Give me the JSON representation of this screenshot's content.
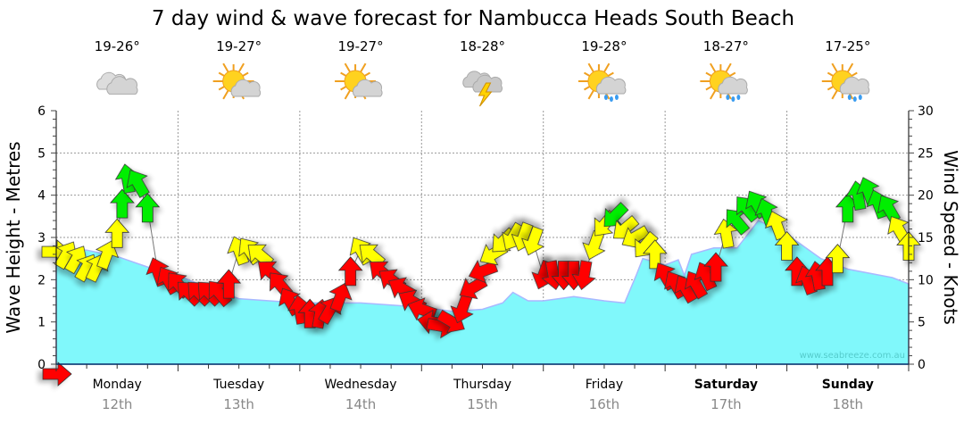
{
  "chart_data": {
    "type": "area+wind-arrows",
    "title": "7 day wind & wave forecast for Nambucca Heads South Beach",
    "ylabel_left": "Wave Height - Metres",
    "ylabel_right": "Wind Speed - Knots",
    "ylim_left": [
      0,
      6
    ],
    "ylim_right": [
      0,
      30
    ],
    "yticks_left": [
      "0",
      "1",
      "2",
      "3",
      "4",
      "5",
      "6"
    ],
    "yticks_right": [
      "0",
      "5",
      "10",
      "15",
      "20",
      "25",
      "30"
    ],
    "xlim_hours": [
      0,
      168
    ],
    "grid": true,
    "watermark": "www.seabreeze.com.au",
    "days": [
      {
        "name": "Monday",
        "date": "12th",
        "bold": false,
        "temp": "19-26°",
        "icon": "cloudy-icon"
      },
      {
        "name": "Tuesday",
        "date": "13th",
        "bold": false,
        "temp": "19-27°",
        "icon": "partly-cloudy-icon"
      },
      {
        "name": "Wednesday",
        "date": "14th",
        "bold": false,
        "temp": "19-27°",
        "icon": "partly-cloudy-icon"
      },
      {
        "name": "Thursday",
        "date": "15th",
        "bold": false,
        "temp": "18-28°",
        "icon": "thunderstorm-icon"
      },
      {
        "name": "Friday",
        "date": "16th",
        "bold": false,
        "temp": "19-28°",
        "icon": "sun-showers-icon"
      },
      {
        "name": "Saturday",
        "date": "17th",
        "bold": true,
        "temp": "18-27°",
        "icon": "sun-showers-icon"
      },
      {
        "name": "Sunday",
        "date": "18th",
        "bold": true,
        "temp": "17-25°",
        "icon": "sun-showers-icon"
      }
    ],
    "wave_height_m": [
      [
        0,
        2.75
      ],
      [
        6,
        2.7
      ],
      [
        12,
        2.55
      ],
      [
        18,
        2.3
      ],
      [
        24,
        2.1
      ],
      [
        30,
        1.8
      ],
      [
        36,
        1.55
      ],
      [
        42,
        1.5
      ],
      [
        48,
        1.45
      ],
      [
        60,
        1.45
      ],
      [
        66,
        1.4
      ],
      [
        72,
        1.35
      ],
      [
        78,
        1.25
      ],
      [
        84,
        1.3
      ],
      [
        88,
        1.45
      ],
      [
        90,
        1.7
      ],
      [
        93,
        1.5
      ],
      [
        96,
        1.5
      ],
      [
        102,
        1.6
      ],
      [
        108,
        1.5
      ],
      [
        112,
        1.45
      ],
      [
        114.3,
        2.1
      ],
      [
        115.6,
        2.5
      ],
      [
        120,
        2.35
      ],
      [
        122.6,
        2.47
      ],
      [
        123.8,
        2.1
      ],
      [
        125.2,
        2.6
      ],
      [
        129.6,
        2.75
      ],
      [
        134.2,
        2.75
      ],
      [
        138.4,
        3.4
      ],
      [
        143.7,
        3.1
      ],
      [
        150.7,
        2.5
      ],
      [
        156,
        2.25
      ],
      [
        164.8,
        2.05
      ],
      [
        168,
        1.9
      ]
    ],
    "wind_colors": {
      "light": "#ff0000",
      "moderate": "#ffff00",
      "strong": "#00ee00"
    },
    "wind": [
      [
        0,
        13.3,
        90,
        "moderate"
      ],
      [
        2,
        13,
        30,
        "moderate"
      ],
      [
        4,
        12.5,
        30,
        "moderate"
      ],
      [
        6,
        11.5,
        30,
        "moderate"
      ],
      [
        8,
        11.5,
        25,
        "moderate"
      ],
      [
        10,
        13,
        20,
        "moderate"
      ],
      [
        12,
        15.5,
        0,
        "moderate"
      ],
      [
        13,
        19,
        0,
        "strong"
      ],
      [
        14,
        22,
        -10,
        "strong"
      ],
      [
        16,
        21.5,
        -30,
        "strong"
      ],
      [
        18,
        18.5,
        0,
        "strong"
      ],
      [
        20,
        11,
        -20,
        "light"
      ],
      [
        22,
        10,
        -30,
        "light"
      ],
      [
        24,
        9.5,
        -40,
        "light"
      ],
      [
        26,
        8.5,
        -45,
        "light"
      ],
      [
        28,
        8.5,
        -45,
        "light"
      ],
      [
        30,
        8.5,
        -45,
        "light"
      ],
      [
        32,
        8.5,
        -40,
        "light"
      ],
      [
        34,
        9.5,
        0,
        "light"
      ],
      [
        36,
        13.5,
        -20,
        "moderate"
      ],
      [
        38,
        13.5,
        -35,
        "moderate"
      ],
      [
        40,
        13,
        -50,
        "moderate"
      ],
      [
        42,
        11,
        -50,
        "light"
      ],
      [
        44,
        9.5,
        -40,
        "light"
      ],
      [
        46,
        7.5,
        -30,
        "light"
      ],
      [
        48,
        6.5,
        -10,
        "light"
      ],
      [
        50,
        6,
        0,
        "light"
      ],
      [
        52,
        6,
        10,
        "light"
      ],
      [
        54,
        6.5,
        30,
        "light"
      ],
      [
        56,
        8,
        20,
        "light"
      ],
      [
        58,
        11,
        0,
        "light"
      ],
      [
        60,
        13.5,
        -30,
        "moderate"
      ],
      [
        62,
        13,
        -50,
        "moderate"
      ],
      [
        64,
        11,
        -50,
        "light"
      ],
      [
        66,
        10,
        -55,
        "light"
      ],
      [
        68,
        9,
        -60,
        "light"
      ],
      [
        70,
        7.5,
        -60,
        "light"
      ],
      [
        72,
        6.5,
        -70,
        "light"
      ],
      [
        74,
        5,
        -80,
        "light"
      ],
      [
        76,
        4.5,
        100,
        "light"
      ],
      [
        78,
        5,
        120,
        "light"
      ],
      [
        80,
        6.5,
        200,
        "light"
      ],
      [
        82,
        9,
        240,
        "light"
      ],
      [
        84,
        11,
        250,
        "light"
      ],
      [
        86,
        13,
        240,
        "moderate"
      ],
      [
        88,
        14.5,
        225,
        "moderate"
      ],
      [
        90,
        15,
        210,
        "moderate"
      ],
      [
        92,
        15,
        200,
        "moderate"
      ],
      [
        94,
        14.5,
        200,
        "moderate"
      ],
      [
        96,
        10.5,
        200,
        "light"
      ],
      [
        98,
        10.5,
        170,
        "light"
      ],
      [
        100,
        10.5,
        180,
        "light"
      ],
      [
        102,
        10.5,
        180,
        "light"
      ],
      [
        104,
        10.5,
        190,
        "light"
      ],
      [
        106,
        14,
        200,
        "moderate"
      ],
      [
        108,
        16.5,
        220,
        "moderate"
      ],
      [
        110,
        17.5,
        225,
        "strong"
      ],
      [
        112,
        16,
        230,
        "moderate"
      ],
      [
        114,
        15,
        240,
        "moderate"
      ],
      [
        116,
        14,
        220,
        "moderate"
      ],
      [
        118,
        13,
        0,
        "moderate"
      ],
      [
        120,
        10.5,
        -30,
        "light"
      ],
      [
        122,
        9.5,
        -30,
        "light"
      ],
      [
        124,
        9,
        -30,
        "light"
      ],
      [
        126,
        9.5,
        -30,
        "light"
      ],
      [
        128,
        10.5,
        -25,
        "light"
      ],
      [
        130,
        11.5,
        0,
        "light"
      ],
      [
        132,
        15.5,
        -10,
        "moderate"
      ],
      [
        134,
        17,
        -40,
        "strong"
      ],
      [
        136,
        18.5,
        -40,
        "strong"
      ],
      [
        138,
        19,
        -30,
        "strong"
      ],
      [
        140,
        18,
        -20,
        "strong"
      ],
      [
        142,
        16.5,
        -20,
        "moderate"
      ],
      [
        144,
        14,
        0,
        "moderate"
      ],
      [
        146,
        11,
        0,
        "light"
      ],
      [
        148,
        10,
        -20,
        "light"
      ],
      [
        150,
        10.5,
        -10,
        "light"
      ],
      [
        152,
        11,
        0,
        "light"
      ],
      [
        154,
        12.5,
        0,
        "moderate"
      ],
      [
        156,
        18.5,
        0,
        "strong"
      ],
      [
        158,
        20,
        -10,
        "strong"
      ],
      [
        160,
        20.5,
        -20,
        "strong"
      ],
      [
        162,
        19,
        -20,
        "strong"
      ],
      [
        164,
        18.5,
        -30,
        "strong"
      ],
      [
        166,
        16,
        -30,
        "moderate"
      ],
      [
        168,
        14,
        0,
        "moderate"
      ]
    ]
  }
}
